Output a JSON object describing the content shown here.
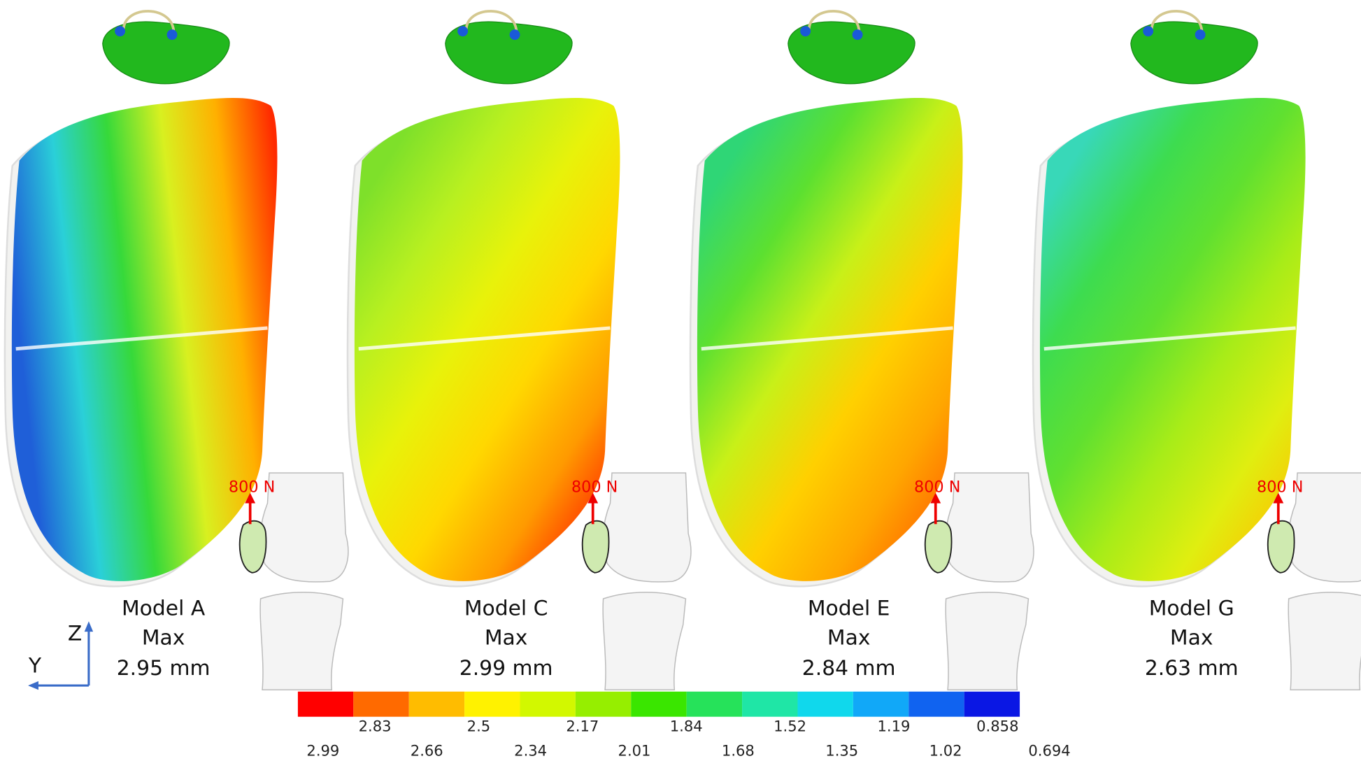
{
  "models": [
    {
      "name": "Model A",
      "max_label": "Max",
      "value": "2.95 mm",
      "force": "800 N",
      "colors": [
        "#1f5fd8",
        "#2ad0d8",
        "#36d93a",
        "#d8f020",
        "#ffb000",
        "#ff2a00"
      ]
    },
    {
      "name": "Model C",
      "max_label": "Max",
      "value": "2.99 mm",
      "force": "800 N",
      "colors": [
        "#7ee02a",
        "#b8f020",
        "#e8f20a",
        "#ffd800",
        "#ff9a00",
        "#ff1a00"
      ]
    },
    {
      "name": "Model E",
      "max_label": "Max",
      "value": "2.84 mm",
      "force": "800 N",
      "colors": [
        "#2fd676",
        "#5ce030",
        "#c8f018",
        "#ffd000",
        "#ffa600",
        "#ff6000"
      ]
    },
    {
      "name": "Model G",
      "max_label": "Max",
      "value": "2.63 mm",
      "force": "800 N",
      "colors": [
        "#38d8b8",
        "#3ddc50",
        "#60e030",
        "#a8ec18",
        "#e0ee10",
        "#ffc000"
      ]
    }
  ],
  "axes": {
    "z": "Z",
    "y": "Y"
  },
  "colorbar": {
    "colors": [
      "#ff0000",
      "#ff6a00",
      "#ffbc00",
      "#fff200",
      "#d2f800",
      "#96ee00",
      "#3ae600",
      "#26e25a",
      "#1fe6a6",
      "#10d8ec",
      "#11a8f8",
      "#1063f0",
      "#0a17e4"
    ],
    "labels": [
      "2.99",
      "2.83",
      "2.66",
      "2.5",
      "2.34",
      "2.17",
      "2.01",
      "1.84",
      "1.68",
      "1.52",
      "1.35",
      "1.19",
      "1.02",
      "0.858",
      "0.694"
    ]
  }
}
